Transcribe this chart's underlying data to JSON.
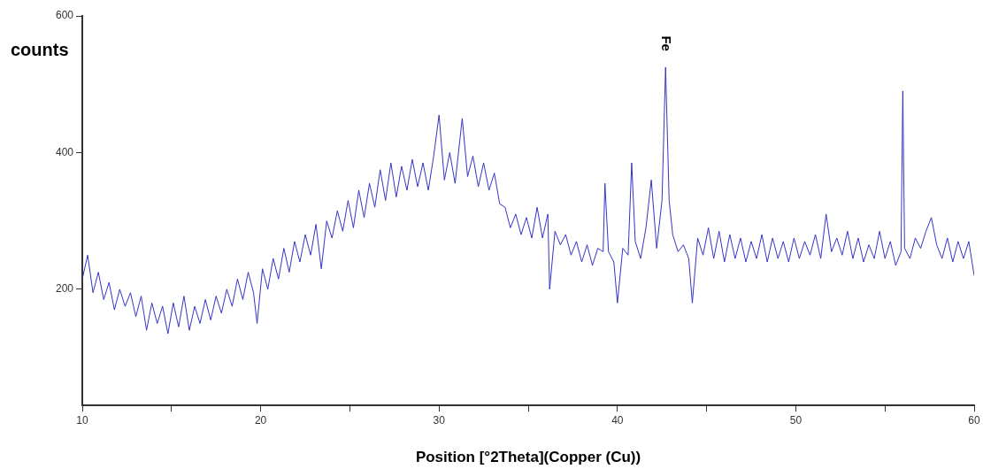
{
  "chart_data": {
    "type": "line",
    "xlabel": "Position [°2Theta](Copper (Cu))",
    "ylabel": "counts",
    "xlim": [
      10,
      60
    ],
    "xticks": [
      10,
      {
        "value": 15,
        "label": null
      },
      20,
      {
        "value": 25,
        "label": null
      },
      30,
      {
        "value": 35,
        "label": null
      },
      40,
      {
        "value": 45,
        "label": null
      },
      50,
      {
        "value": 55,
        "label": null
      },
      60
    ],
    "ylim": [
      30,
      600
    ],
    "yticks": [
      200,
      400,
      600
    ],
    "grid": false,
    "legend": false,
    "marker": "none",
    "line_style": "solid",
    "annotations": [
      {
        "text": "Fe",
        "x": 42.7,
        "y": 525
      }
    ],
    "series": [
      {
        "color": "#3434c8",
        "x": [
          10.0,
          10.3,
          10.6,
          10.9,
          11.2,
          11.5,
          11.8,
          12.1,
          12.4,
          12.7,
          13.0,
          13.3,
          13.6,
          13.9,
          14.2,
          14.5,
          14.8,
          15.1,
          15.4,
          15.7,
          16.0,
          16.3,
          16.6,
          16.9,
          17.2,
          17.5,
          17.8,
          18.1,
          18.4,
          18.7,
          19.0,
          19.3,
          19.6,
          19.8,
          20.1,
          20.4,
          20.7,
          21.0,
          21.3,
          21.6,
          21.9,
          22.2,
          22.5,
          22.8,
          23.1,
          23.4,
          23.7,
          24.0,
          24.3,
          24.6,
          24.9,
          25.2,
          25.5,
          25.8,
          26.1,
          26.4,
          26.7,
          27.0,
          27.3,
          27.6,
          27.9,
          28.2,
          28.5,
          28.8,
          29.1,
          29.4,
          29.7,
          30.0,
          30.3,
          30.6,
          30.9,
          31.3,
          31.6,
          31.9,
          32.2,
          32.5,
          32.8,
          33.1,
          33.4,
          33.7,
          34.0,
          34.3,
          34.6,
          34.9,
          35.2,
          35.5,
          35.8,
          36.1,
          36.2,
          36.5,
          36.8,
          37.1,
          37.4,
          37.7,
          38.0,
          38.3,
          38.6,
          38.9,
          39.2,
          39.3,
          39.5,
          39.8,
          40.0,
          40.3,
          40.6,
          40.8,
          41.0,
          41.3,
          41.6,
          41.9,
          42.2,
          42.5,
          42.7,
          42.9,
          43.1,
          43.4,
          43.7,
          44.0,
          44.2,
          44.5,
          44.8,
          45.1,
          45.4,
          45.7,
          46.0,
          46.3,
          46.6,
          46.9,
          47.2,
          47.5,
          47.8,
          48.1,
          48.4,
          48.7,
          49.0,
          49.3,
          49.6,
          49.9,
          50.2,
          50.5,
          50.8,
          51.1,
          51.4,
          51.7,
          52.0,
          52.3,
          52.6,
          52.9,
          53.2,
          53.5,
          53.8,
          54.1,
          54.4,
          54.7,
          55.0,
          55.3,
          55.6,
          55.9,
          56.0,
          56.1,
          56.4,
          56.7,
          57.0,
          57.3,
          57.6,
          57.9,
          58.2,
          58.5,
          58.8,
          59.1,
          59.4,
          59.7,
          60.0
        ],
        "values": [
          215,
          250,
          195,
          225,
          185,
          210,
          170,
          200,
          175,
          195,
          160,
          190,
          140,
          180,
          150,
          175,
          135,
          180,
          145,
          190,
          140,
          175,
          150,
          185,
          155,
          190,
          165,
          200,
          175,
          215,
          185,
          225,
          195,
          150,
          230,
          200,
          245,
          215,
          260,
          225,
          270,
          240,
          280,
          250,
          295,
          230,
          300,
          275,
          315,
          285,
          330,
          290,
          345,
          305,
          355,
          320,
          375,
          330,
          385,
          335,
          380,
          345,
          390,
          350,
          385,
          345,
          395,
          455,
          360,
          400,
          355,
          450,
          365,
          395,
          350,
          385,
          345,
          370,
          325,
          320,
          290,
          310,
          280,
          305,
          275,
          320,
          275,
          310,
          200,
          285,
          265,
          280,
          250,
          270,
          240,
          265,
          235,
          260,
          255,
          355,
          255,
          240,
          180,
          260,
          250,
          385,
          270,
          245,
          290,
          360,
          260,
          330,
          525,
          330,
          280,
          255,
          265,
          245,
          180,
          275,
          250,
          290,
          245,
          285,
          240,
          280,
          245,
          275,
          240,
          270,
          245,
          280,
          240,
          275,
          245,
          270,
          240,
          275,
          245,
          270,
          250,
          280,
          245,
          310,
          255,
          275,
          250,
          285,
          245,
          275,
          240,
          265,
          245,
          285,
          245,
          270,
          235,
          255,
          490,
          260,
          245,
          275,
          260,
          285,
          305,
          265,
          245,
          275,
          240,
          270,
          245,
          270,
          220
        ]
      }
    ]
  }
}
